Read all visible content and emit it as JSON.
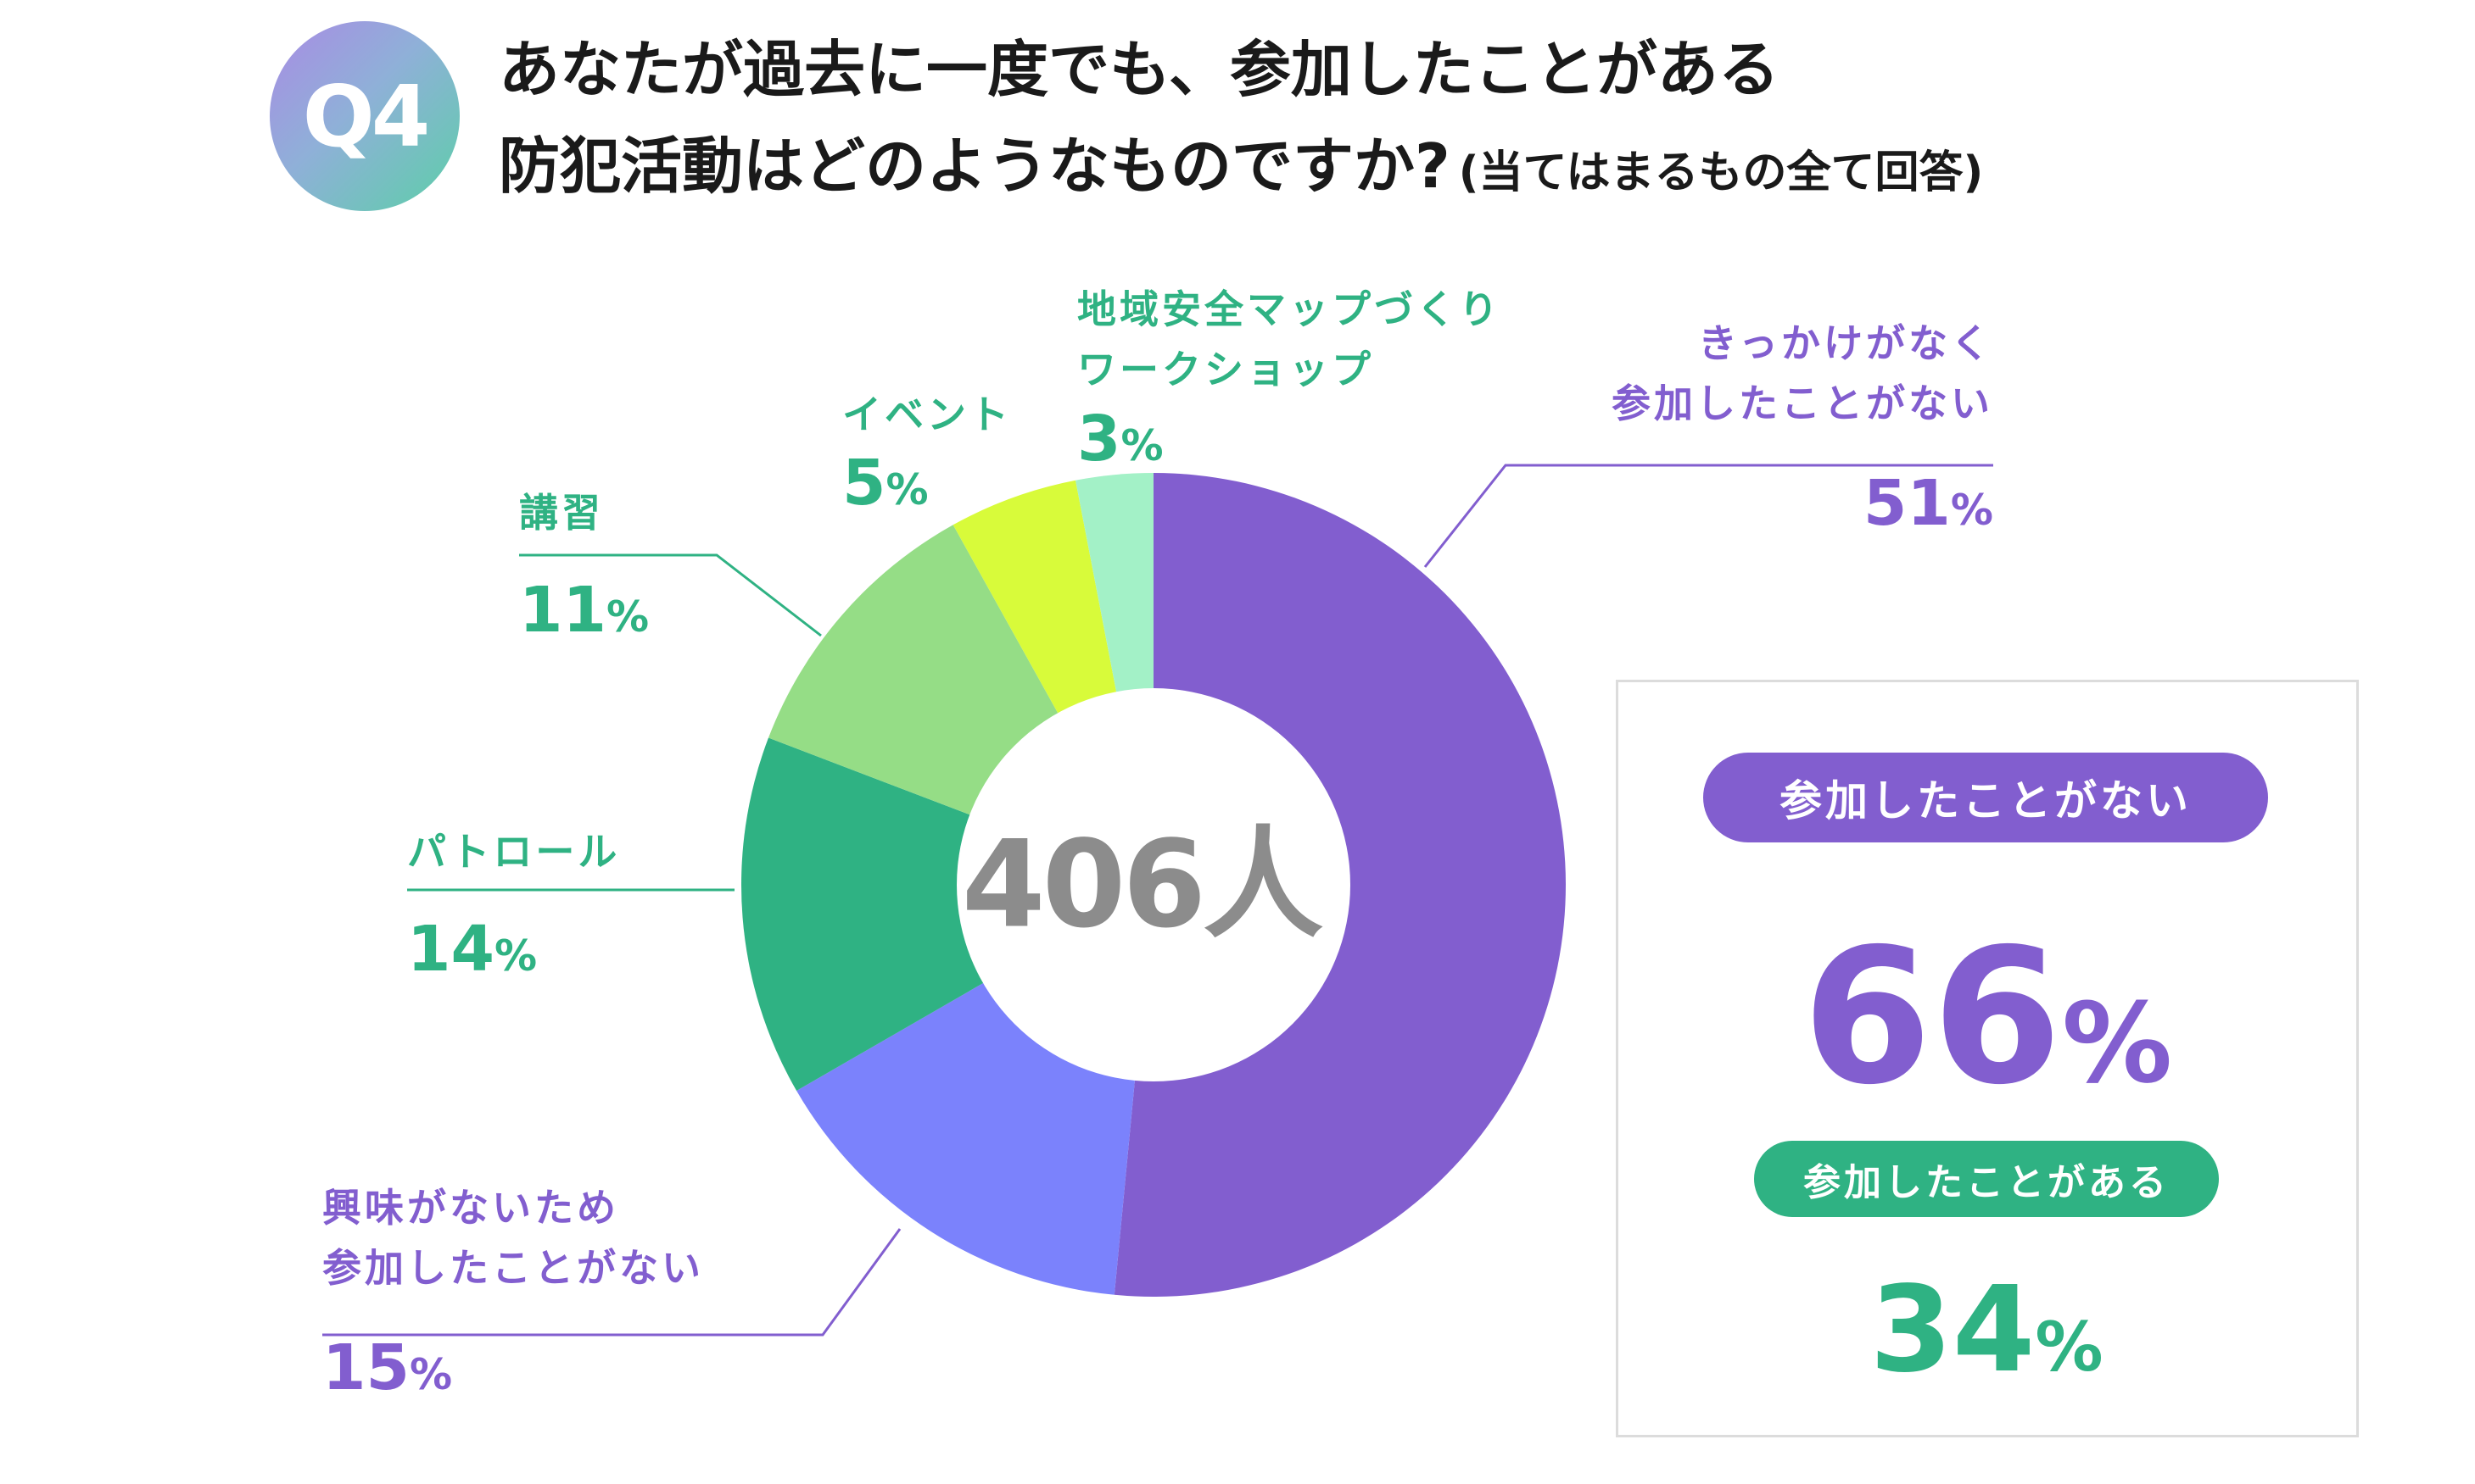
{
  "header": {
    "badge": "Q4",
    "title_line_1": "あなたが過去に一度でも、参加したことがある",
    "title_line_2": "防犯活動はどのようなものですか?",
    "title_note": "(当てはまるもの全て回答)"
  },
  "chart_data": {
    "type": "pie",
    "variant": "donut",
    "title": "あなたが過去に一度でも、参加したことがある防犯活動はどのようなものですか?",
    "center_label": "406人",
    "slices": [
      {
        "label": "きっかけがなく参加したことがない",
        "value": 51,
        "color": "#825ecf"
      },
      {
        "label": "興味がないため参加したことがない",
        "value": 15,
        "color": "#7b82fc"
      },
      {
        "label": "パトロール",
        "value": 14,
        "color": "#2fb283"
      },
      {
        "label": "講習",
        "value": 11,
        "color": "#95dd86"
      },
      {
        "label": "イベント",
        "value": 5,
        "color": "#d8fb3a"
      },
      {
        "label": "地域安全マップづくりワークショップ",
        "value": 3,
        "color": "#a3f1c7"
      }
    ]
  },
  "labels": {
    "map": {
      "name_1": "地域安全マップづくり",
      "name_2": "ワークショップ",
      "pct": "3",
      "sign": "%"
    },
    "event": {
      "name": "イベント",
      "pct": "5",
      "sign": "%"
    },
    "lecture": {
      "name": "講習",
      "pct": "11",
      "sign": "%"
    },
    "patrol": {
      "name": "パトロール",
      "pct": "14",
      "sign": "%"
    },
    "no_interest": {
      "name_1": "興味がないため",
      "name_2": "参加したことがない",
      "pct": "15",
      "sign": "%"
    },
    "no_chance": {
      "name_1": "きっかけがなく",
      "name_2": "参加したことがない",
      "pct": "51",
      "sign": "%"
    }
  },
  "summary": {
    "not_participated_label": "参加したことがない",
    "not_participated_pct": "66",
    "participated_label": "参加したことがある",
    "participated_pct": "34",
    "sign": "%"
  },
  "colors": {
    "purple": "#825ecf",
    "periwinkle": "#7b82fc",
    "green": "#2fb283",
    "light_green": "#95dd86",
    "lime": "#d8fb3a",
    "mint": "#a3f1c7",
    "center_text": "#8c8c8c"
  }
}
